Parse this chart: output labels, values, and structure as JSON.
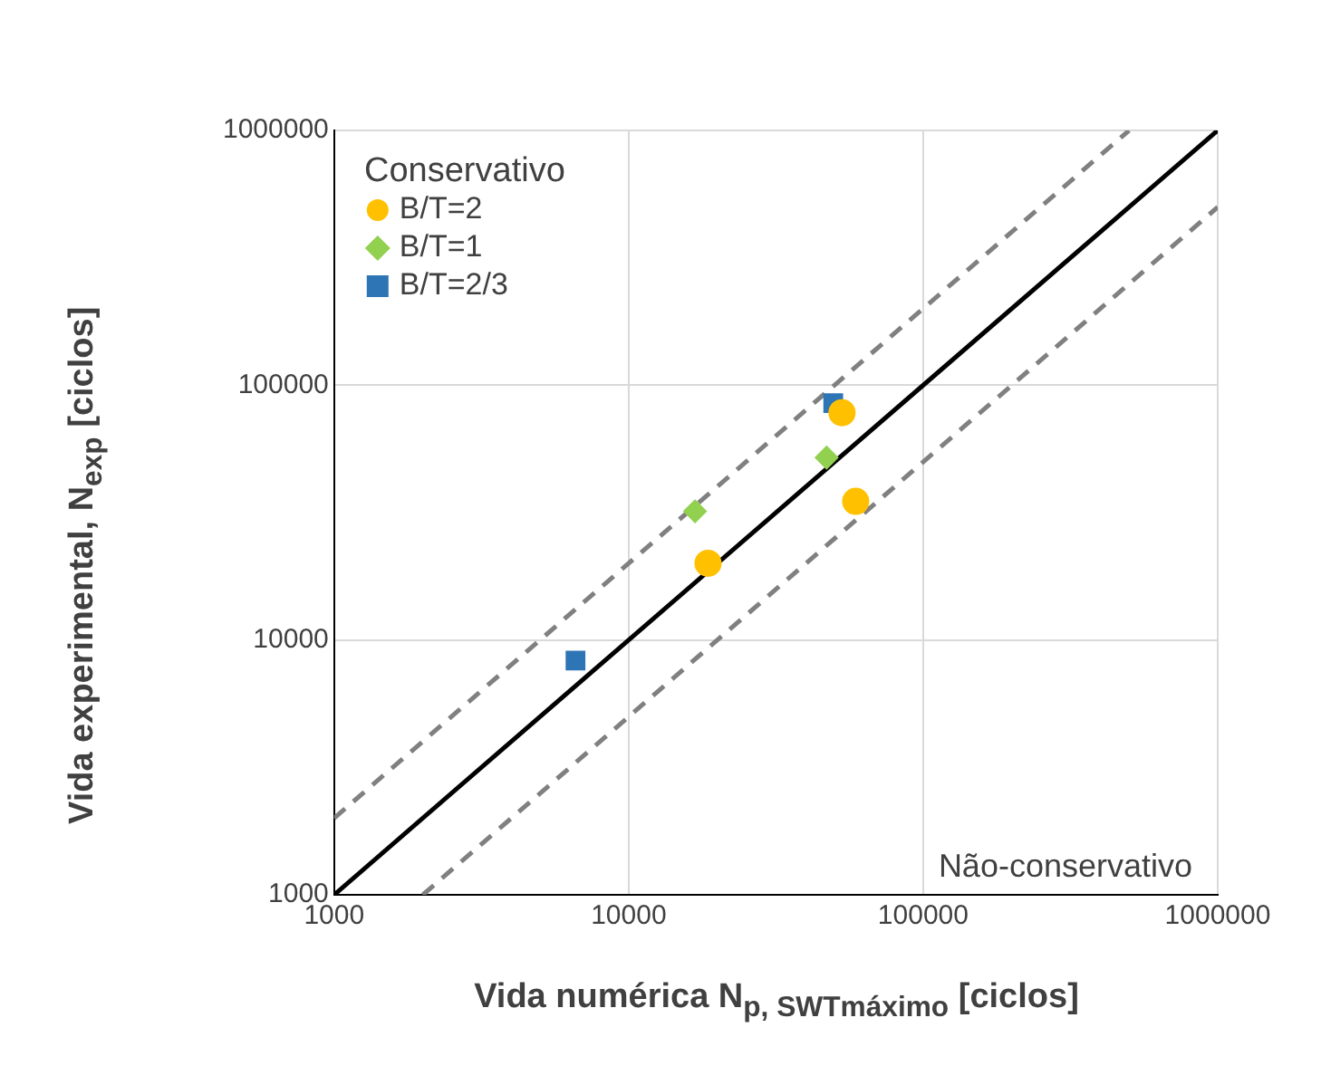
{
  "chart_data": {
    "type": "scatter",
    "xlabel": "Vida numérica N$_{p, SWTmáximo}$ [ciclos]",
    "ylabel": "Vida experimental, N$_{exp}$ [ciclos]",
    "legend_title": "Conservativo",
    "annotations": [
      "Não-conservativo"
    ],
    "series": [
      {
        "name": "B/T=2",
        "color": "#ffc000",
        "marker": "circle",
        "x": [
          53000,
          59000,
          18600
        ],
        "values": [
          78000,
          35000,
          20000
        ]
      },
      {
        "name": "B/T=1",
        "color": "#92d050",
        "marker": "diamond",
        "x": [
          16800,
          47000
        ],
        "values": [
          32000,
          52000
        ]
      },
      {
        "name": "B/T=2/3",
        "color": "#2e75b6",
        "marker": "square",
        "x": [
          49500,
          6600
        ],
        "values": [
          85000,
          8300
        ]
      },
      {
        "type": "line",
        "color": "#000000",
        "line_style": "solid",
        "x": [
          1000,
          1000000
        ],
        "values": [
          1000,
          1000000
        ]
      },
      {
        "type": "line",
        "color": "#808080",
        "line_style": "dashed",
        "x": [
          1000,
          500000
        ],
        "values": [
          2000,
          1000000
        ]
      },
      {
        "type": "line",
        "color": "#808080",
        "line_style": "dashed",
        "x": [
          2000,
          1000000
        ],
        "values": [
          1000,
          500000
        ]
      }
    ],
    "xlim": [
      1000,
      1000000
    ],
    "ylim": [
      1000,
      1000000
    ],
    "xticks": [
      1000,
      10000,
      100000,
      1000000
    ],
    "yticks": [
      1000,
      10000,
      100000,
      1000000
    ],
    "log": "xy",
    "grid": true,
    "legend": "top left"
  }
}
